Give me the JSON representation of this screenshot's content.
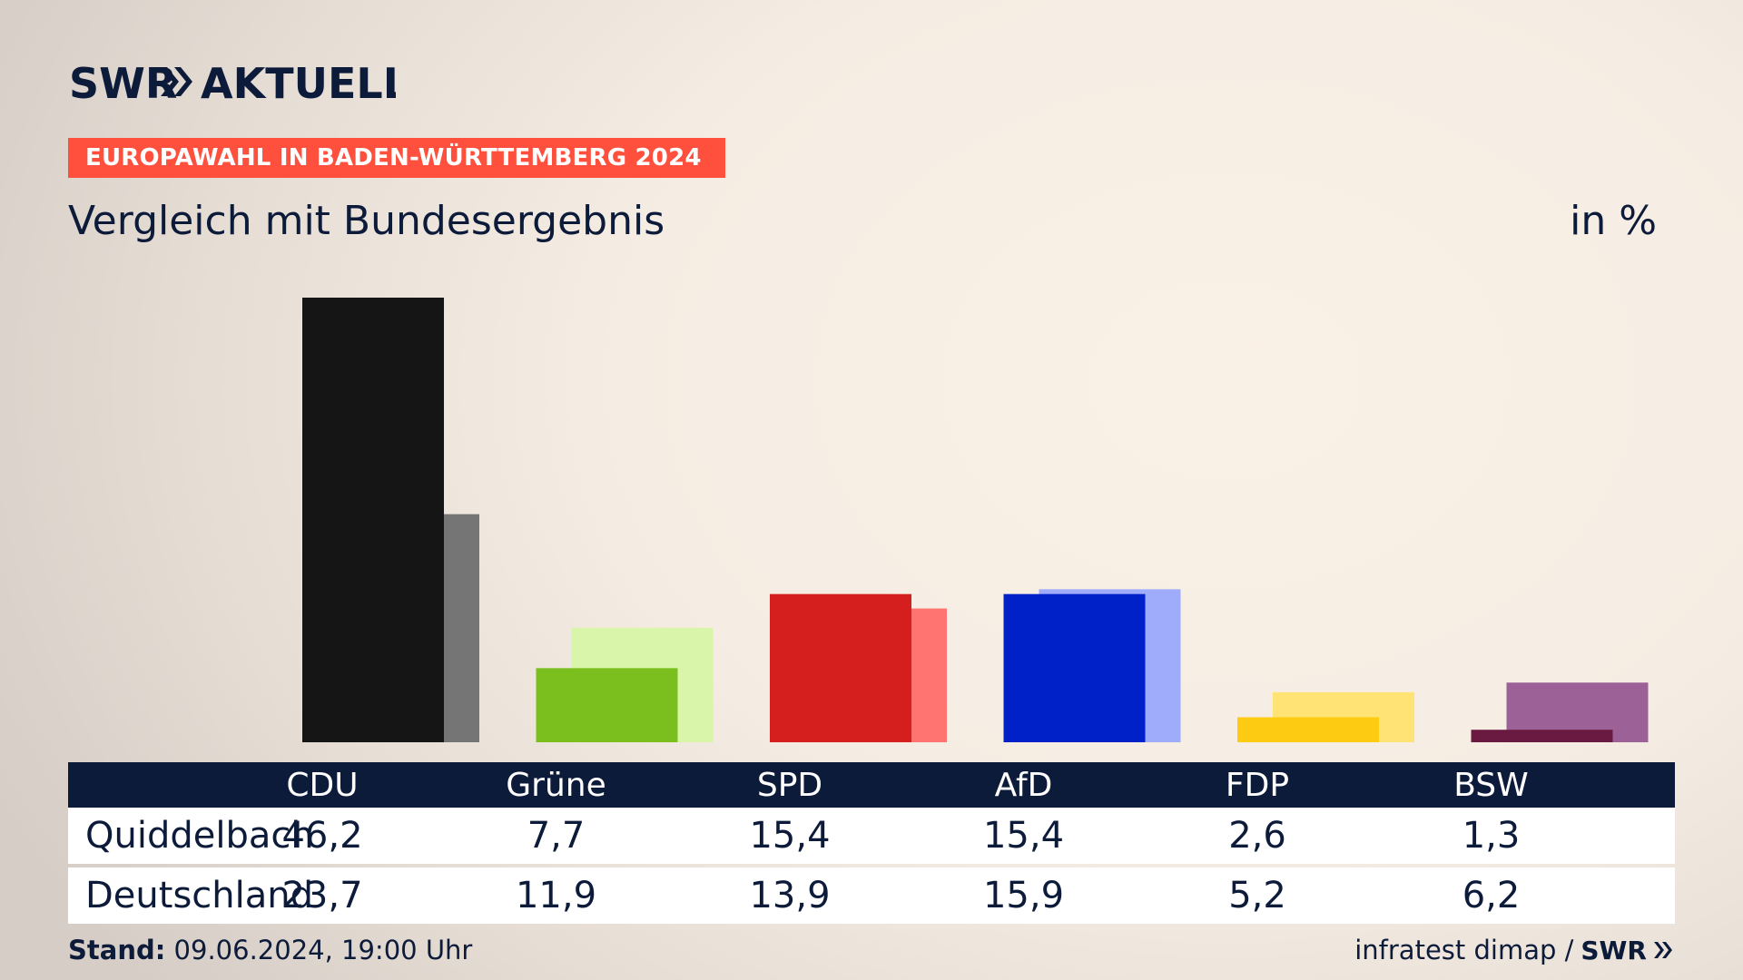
{
  "brand": {
    "logo_text": "SWR",
    "logo_suffix": "AKTUELL",
    "logo_color": "#0d1b3a"
  },
  "topic_label": "EUROPAWAHL IN BADEN-WÜRTTEMBERG 2024",
  "topic_color": "#ff4f3d",
  "subtitle": "Vergleich mit Bundesergebnis",
  "unit": "in %",
  "chart_data": {
    "type": "bar",
    "categories": [
      "CDU",
      "Grüne",
      "SPD",
      "AfD",
      "FDP",
      "BSW"
    ],
    "series": [
      {
        "name": "Quiddelbach",
        "values": [
          46.2,
          7.7,
          15.4,
          15.4,
          2.6,
          1.3
        ],
        "colors": [
          "#151515",
          "#7abf1e",
          "#d51f1f",
          "#0020c8",
          "#fdcc12",
          "#6a1a40"
        ]
      },
      {
        "name": "Deutschland",
        "values": [
          23.7,
          11.9,
          13.9,
          15.9,
          5.2,
          6.2
        ],
        "colors": [
          "#757575",
          "#d8f5a9",
          "#ff7370",
          "#9fabfb",
          "#ffe374",
          "#9c6196"
        ]
      }
    ],
    "ylim": [
      0,
      46.2
    ],
    "grid": false
  },
  "table": {
    "rows": [
      {
        "label": "Quiddelbach",
        "values": [
          "46,2",
          "7,7",
          "15,4",
          "15,4",
          "2,6",
          "1,3"
        ]
      },
      {
        "label": "Deutschland",
        "values": [
          "23,7",
          "11,9",
          "13,9",
          "15,9",
          "5,2",
          "6,2"
        ]
      }
    ]
  },
  "footer": {
    "stand_label": "Stand:",
    "stand_value": "09.06.2024, 19:00 Uhr",
    "source": "infratest dimap /",
    "source_logo": "SWR"
  }
}
